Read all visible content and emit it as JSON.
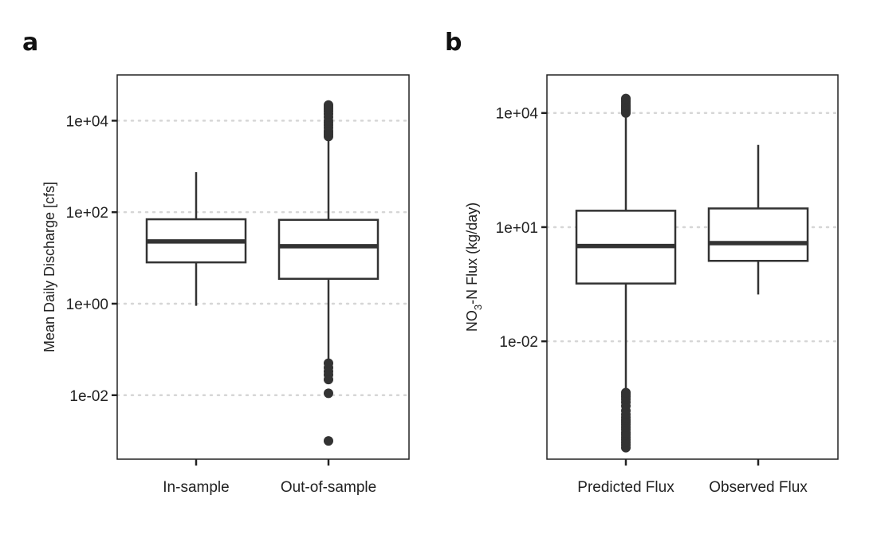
{
  "chart_data": [
    {
      "type": "boxplot",
      "panel": "a",
      "title": "",
      "xlabel": "",
      "ylabel": "Mean Daily Discharge [cfs]",
      "yscale": "log",
      "ylim": [
        0.0004,
        100000
      ],
      "yticks": [
        0.01,
        1,
        100,
        10000
      ],
      "ytick_labels": [
        "1e-02",
        "1e+00",
        "1e+02",
        "1e+04"
      ],
      "grid": "horizontal dotted",
      "categories": [
        "In-sample",
        "Out-of-sample"
      ],
      "boxes": [
        {
          "category": "In-sample",
          "whisker_low": 0.9,
          "q1": 8,
          "median": 23,
          "q3": 70,
          "whisker_high": 750,
          "outliers": []
        },
        {
          "category": "Out-of-sample",
          "whisker_low": 0.06,
          "q1": 3.5,
          "median": 18,
          "q3": 68,
          "whisker_high": 4000,
          "outliers": [
            0.001,
            0.011,
            0.022,
            0.028,
            0.033,
            0.04,
            0.05,
            4500,
            5000,
            5500,
            6000,
            7000,
            8000,
            9000,
            10000,
            12000,
            14000,
            16000,
            18000,
            20000,
            22000
          ]
        }
      ]
    },
    {
      "type": "boxplot",
      "panel": "b",
      "title": "",
      "xlabel": "",
      "ylabel_parts": {
        "before": "NO",
        "sub": "3",
        "after": "-N Flux (kg/day)"
      },
      "yscale": "log",
      "ylim": [
        8e-06,
        100000
      ],
      "yticks": [
        0.01,
        10,
        10000
      ],
      "ytick_labels": [
        "1e-02",
        "1e+01",
        "1e+04"
      ],
      "grid": "horizontal dotted",
      "categories": [
        "Predicted Flux",
        "Observed Flux"
      ],
      "boxes": [
        {
          "category": "Predicted Flux",
          "whisker_low": 0.00053,
          "q1": 0.33,
          "median": 3.2,
          "q3": 27,
          "whisker_high": 9000,
          "outliers": [
            1.6e-05,
            1.9e-05,
            2.2e-05,
            2.6e-05,
            3e-05,
            3.5e-05,
            4e-05,
            4.8e-05,
            5.5e-05,
            6.5e-05,
            7.5e-05,
            8.5e-05,
            0.0001,
            0.00012,
            0.00015,
            0.0002,
            0.00025,
            0.0003,
            0.00035,
            0.0004,
            0.00045,
            10000,
            11000,
            12000,
            13000,
            14000,
            15000,
            16000,
            18000,
            20000,
            22000,
            24000
          ]
        },
        {
          "category": "Observed Flux",
          "whisker_low": 0.17,
          "q1": 1.3,
          "median": 3.8,
          "q3": 31,
          "whisker_high": 1450,
          "outliers": []
        }
      ]
    }
  ]
}
